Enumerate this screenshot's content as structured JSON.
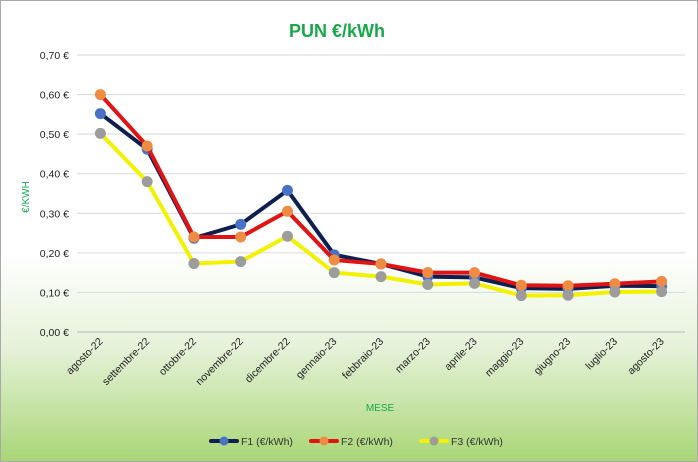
{
  "chart_data": {
    "type": "line",
    "title": "PUN €/kWh",
    "xlabel": "MESE",
    "ylabel": "€/KWH",
    "categories": [
      "agosto-22",
      "settembre-22",
      "ottobre-22",
      "novembre-22",
      "dicembre-22",
      "gennaio-23",
      "febbraio-23",
      "marzo-23",
      "aprile-23",
      "maggio-23",
      "giugno-23",
      "luglio-23",
      "agosto-23"
    ],
    "ylim": [
      0,
      0.7
    ],
    "yticks": [
      0,
      0.1,
      0.2,
      0.3,
      0.4,
      0.5,
      0.6,
      0.7
    ],
    "ytick_labels": [
      "0,00 €",
      "0,10 €",
      "0,20 €",
      "0,30 €",
      "0,40 €",
      "0,50 €",
      "0,60 €",
      "0,70 €"
    ],
    "grid": true,
    "legend_position": "bottom",
    "series": [
      {
        "name": "F1 (€/kWh)",
        "values": [
          0.552,
          0.462,
          0.237,
          0.272,
          0.358,
          0.195,
          0.172,
          0.14,
          0.138,
          0.111,
          0.109,
          0.117,
          0.116
        ],
        "line_color": "#0d1f4f",
        "marker_color": "#4a72c4"
      },
      {
        "name": "F2 (€/kWh)",
        "values": [
          0.6,
          0.47,
          0.24,
          0.24,
          0.305,
          0.182,
          0.172,
          0.15,
          0.15,
          0.118,
          0.117,
          0.122,
          0.128
        ],
        "line_color": "#e01414",
        "marker_color": "#ee8c44"
      },
      {
        "name": "F3 (€/kWh)",
        "values": [
          0.502,
          0.38,
          0.173,
          0.178,
          0.242,
          0.15,
          0.14,
          0.12,
          0.123,
          0.092,
          0.093,
          0.101,
          0.102
        ],
        "line_color": "#f2f200",
        "marker_color": "#9c9c9c"
      }
    ]
  }
}
